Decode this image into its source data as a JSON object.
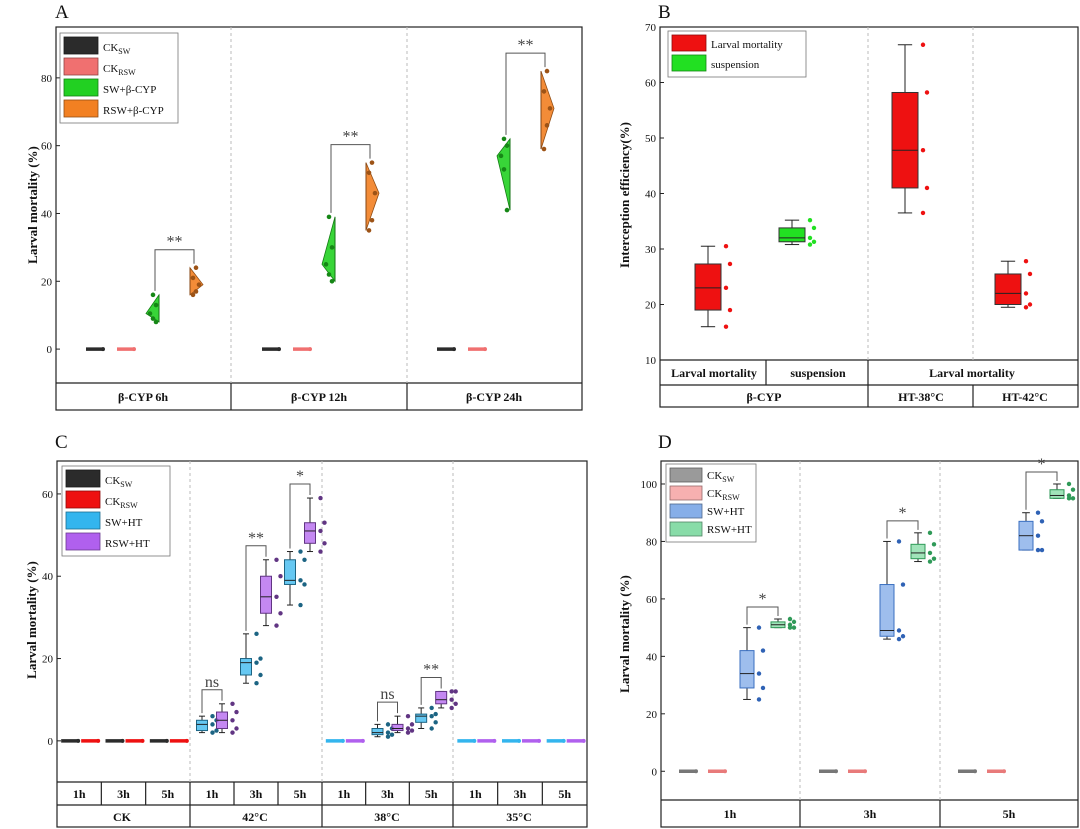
{
  "chart_data": [
    {
      "panel": "A",
      "type": "box",
      "ylabel": "Larval mortality (%)",
      "ylim": [
        -10,
        95
      ],
      "yticks": [
        0,
        20,
        40,
        60,
        80
      ],
      "legend": [
        {
          "label": "CK",
          "sub": "SW",
          "color": "#2b2b2b"
        },
        {
          "label": "CK",
          "sub": "RSW",
          "color": "#f07070"
        },
        {
          "label": "SW+β-CYP",
          "sub": "",
          "color": "#22d022"
        },
        {
          "label": "RSW+β-CYP",
          "sub": "",
          "color": "#f28022"
        }
      ],
      "groups": [
        "β-CYP 6h",
        "β-CYP 12h",
        "β-CYP 24h"
      ],
      "series": [
        {
          "name": "CK SW",
          "color": "#2b2b2b",
          "values": [
            0,
            0,
            0
          ]
        },
        {
          "name": "CK RSW",
          "color": "#f07070",
          "values": [
            0,
            0,
            0
          ]
        },
        {
          "name": "SW+β-CYP",
          "color": "#22d022",
          "values": [
            {
              "min": 8,
              "q1": 9,
              "median": 10.5,
              "q3": 13,
              "max": 16
            },
            {
              "min": 20,
              "q1": 22,
              "median": 25,
              "q3": 30,
              "max": 39
            },
            {
              "min": 41,
              "q1": 53,
              "median": 57,
              "q3": 60,
              "max": 62
            }
          ]
        },
        {
          "name": "RSW+β-CYP",
          "color": "#f28022",
          "values": [
            {
              "min": 16,
              "q1": 17,
              "median": 19,
              "q3": 21,
              "max": 24
            },
            {
              "min": 35,
              "q1": 38,
              "median": 46,
              "q3": 52,
              "max": 55
            },
            {
              "min": 59,
              "q1": 66,
              "median": 71,
              "q3": 76,
              "max": 82
            }
          ]
        }
      ],
      "significance": [
        "**",
        "**",
        "**"
      ]
    },
    {
      "panel": "B",
      "type": "box",
      "ylabel": "Interception efficiency(%)",
      "ylim": [
        10,
        70
      ],
      "yticks": [
        10,
        20,
        30,
        40,
        50,
        60,
        70
      ],
      "legend": [
        {
          "label": "Larval mortality",
          "color": "#ee1111"
        },
        {
          "label": "suspension",
          "color": "#22e022"
        }
      ],
      "sublabels": [
        "Larval mortality",
        "suspension",
        "Larval mortality"
      ],
      "groups": [
        "β-CYP",
        "HT-38°C",
        "HT-42°C"
      ],
      "boxes": [
        {
          "series": "Larval mortality",
          "color": "#ee1111",
          "min": 16,
          "q1": 19,
          "median": 23,
          "q3": 27.3,
          "max": 30.5
        },
        {
          "series": "suspension",
          "color": "#22e022",
          "min": 30.8,
          "q1": 31.3,
          "median": 32,
          "q3": 33.8,
          "max": 35.2
        },
        {
          "series": "Larval mortality",
          "color": "#ee1111",
          "min": 36.5,
          "q1": 41,
          "median": 47.8,
          "q3": 58.2,
          "max": 66.8
        },
        {
          "series": "Larval mortality",
          "color": "#ee1111",
          "min": 19.5,
          "q1": 20,
          "median": 22,
          "q3": 25.5,
          "max": 27.8
        }
      ]
    },
    {
      "panel": "C",
      "type": "box",
      "ylabel": "Larval mortality (%)",
      "ylim": [
        -10,
        68
      ],
      "yticks": [
        0,
        20,
        40,
        60
      ],
      "legend": [
        {
          "label": "CK",
          "sub": "SW",
          "color": "#2b2b2b"
        },
        {
          "label": "CK",
          "sub": "RSW",
          "color": "#ee1111"
        },
        {
          "label": "SW+HT",
          "sub": "",
          "color": "#33b5ee"
        },
        {
          "label": "RSW+HT",
          "sub": "",
          "color": "#b060ee"
        }
      ],
      "groups": [
        "CK",
        "42°C",
        "38°C",
        "35°C"
      ],
      "times": [
        "1h",
        "3h",
        "5h"
      ],
      "series": [
        {
          "name": "CK SW",
          "color": "#2b2b2b",
          "values": [
            [
              0,
              0,
              0
            ]
          ]
        },
        {
          "name": "CK RSW",
          "color": "#ee1111",
          "values": [
            [
              0,
              0,
              0
            ]
          ]
        },
        {
          "name": "SW+HT",
          "color": "#33b5ee",
          "values": [
            [
              {
                "min": 2,
                "q1": 2.5,
                "median": 4,
                "q3": 5,
                "max": 6
              },
              {
                "min": 14,
                "q1": 16,
                "median": 19,
                "q3": 20,
                "max": 26
              },
              {
                "min": 33,
                "q1": 38,
                "median": 39,
                "q3": 44,
                "max": 46
              }
            ],
            [
              {
                "min": 0,
                "q1": 0,
                "median": 0,
                "q3": 0,
                "max": 0
              },
              {
                "min": 1,
                "q1": 1.5,
                "median": 2,
                "q3": 3,
                "max": 4
              },
              {
                "min": 3,
                "q1": 4.5,
                "median": 6,
                "q3": 6.5,
                "max": 8
              }
            ],
            [
              {
                "min": 0,
                "q1": 0,
                "median": 0,
                "q3": 0,
                "max": 0
              },
              {
                "min": 0,
                "q1": 0,
                "median": 0,
                "q3": 0,
                "max": 0
              },
              {
                "min": 0,
                "q1": 0,
                "median": 0,
                "q3": 0,
                "max": 0
              }
            ]
          ]
        },
        {
          "name": "RSW+HT",
          "color": "#b060ee",
          "values": [
            [
              {
                "min": 2,
                "q1": 3,
                "median": 5,
                "q3": 7,
                "max": 9
              },
              {
                "min": 28,
                "q1": 31,
                "median": 35,
                "q3": 40,
                "max": 44
              },
              {
                "min": 46,
                "q1": 48,
                "median": 51,
                "q3": 53,
                "max": 59
              }
            ],
            [
              {
                "min": 0,
                "q1": 0,
                "median": 0,
                "q3": 0,
                "max": 0
              },
              {
                "min": 2,
                "q1": 2.5,
                "median": 3,
                "q3": 4,
                "max": 6
              },
              {
                "min": 8,
                "q1": 9,
                "median": 10,
                "q3": 12,
                "max": 12
              }
            ],
            [
              {
                "min": 0,
                "q1": 0,
                "median": 0,
                "q3": 0,
                "max": 0
              },
              {
                "min": 0,
                "q1": 0,
                "median": 0,
                "q3": 0,
                "max": 0
              },
              {
                "min": 0,
                "q1": 0,
                "median": 0,
                "q3": 0,
                "max": 0
              }
            ]
          ]
        }
      ],
      "significance": [
        {
          "group": "42°C",
          "time": "1h",
          "label": "ns"
        },
        {
          "group": "42°C",
          "time": "3h",
          "label": "**"
        },
        {
          "group": "42°C",
          "time": "5h",
          "label": "*"
        },
        {
          "group": "38°C",
          "time": "3h",
          "label": "ns"
        },
        {
          "group": "38°C",
          "time": "5h",
          "label": "**"
        }
      ]
    },
    {
      "panel": "D",
      "type": "box",
      "ylabel": "Larval mortality (%)",
      "ylim": [
        -10,
        108
      ],
      "yticks": [
        0,
        20,
        40,
        60,
        80,
        100
      ],
      "legend": [
        {
          "label": "CK",
          "sub": "SW",
          "color": "#9a9a9a"
        },
        {
          "label": "CK",
          "sub": "RSW",
          "color": "#f7b0b0"
        },
        {
          "label": "SW+HT",
          "sub": "",
          "color": "#86aee8"
        },
        {
          "label": "RSW+HT",
          "sub": "",
          "color": "#88dca8"
        }
      ],
      "groups": [
        "1h",
        "3h",
        "5h"
      ],
      "series": [
        {
          "name": "CK SW",
          "color": "#9a9a9a",
          "values": [
            0,
            0,
            0
          ]
        },
        {
          "name": "CK RSW",
          "color": "#f7b0b0",
          "values": [
            0,
            0,
            0
          ]
        },
        {
          "name": "SW+HT",
          "color": "#86aee8",
          "values": [
            {
              "min": 25,
              "q1": 29,
              "median": 34,
              "q3": 42,
              "max": 50
            },
            {
              "min": 46,
              "q1": 47,
              "median": 49,
              "q3": 65,
              "max": 80
            },
            {
              "min": 77,
              "q1": 77,
              "median": 82,
              "q3": 87,
              "max": 90
            }
          ]
        },
        {
          "name": "RSW+HT",
          "color": "#88dca8",
          "values": [
            {
              "min": 50,
              "q1": 50,
              "median": 51,
              "q3": 52,
              "max": 53
            },
            {
              "min": 73,
              "q1": 74,
              "median": 76,
              "q3": 79,
              "max": 83
            },
            {
              "min": 95,
              "q1": 95,
              "median": 96,
              "q3": 98,
              "max": 100
            }
          ]
        }
      ],
      "significance": [
        "*",
        "*",
        "*"
      ]
    }
  ]
}
